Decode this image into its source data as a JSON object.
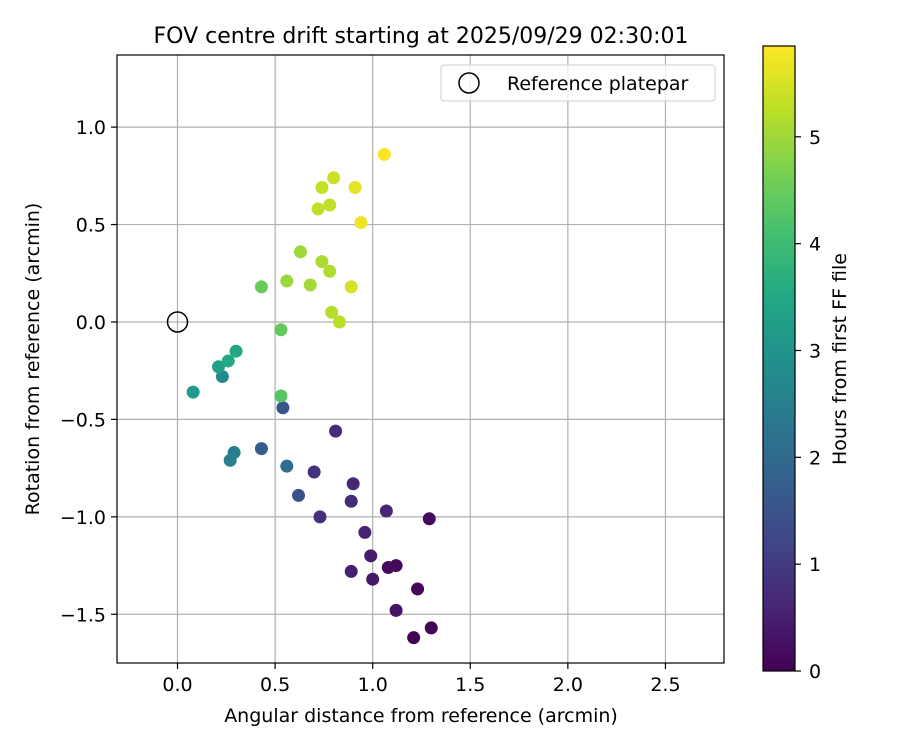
{
  "chart_data": {
    "type": "scatter",
    "title": "FOV centre drift starting at 2025/09/29 02:30:01",
    "xlabel": "Angular distance from reference (arcmin)",
    "ylabel": "Rotation from reference (arcmin)",
    "xlim": [
      -0.31,
      2.8
    ],
    "ylim": [
      -1.75,
      1.37
    ],
    "xticks": [
      0.0,
      0.5,
      1.0,
      1.5,
      2.0,
      2.5
    ],
    "xtick_labels": [
      "0.0",
      "0.5",
      "1.0",
      "1.5",
      "2.0",
      "2.5"
    ],
    "yticks": [
      1.0,
      0.5,
      0.0,
      -0.5,
      -1.0,
      -1.5
    ],
    "ytick_labels": [
      "1.0",
      "0.5",
      "0.0",
      "−0.5",
      "−1.0",
      "−1.5"
    ],
    "grid": true,
    "legend": {
      "position": "top-right",
      "entries": [
        {
          "label": "Reference platepar",
          "marker": "open-circle"
        }
      ]
    },
    "reference_point": {
      "x": 0.0,
      "y": 0.0
    },
    "colorbar": {
      "label": "Hours from first FF file",
      "colormap": "viridis",
      "range": [
        0,
        5.85
      ],
      "ticks": [
        0,
        1,
        2,
        3,
        4,
        5
      ],
      "tick_labels": [
        "0",
        "1",
        "2",
        "3",
        "4",
        "5"
      ]
    },
    "points": [
      {
        "x": 1.21,
        "y": -1.62,
        "hours": 0.02
      },
      {
        "x": 1.3,
        "y": -1.57,
        "hours": 0.05
      },
      {
        "x": 1.23,
        "y": -1.37,
        "hours": 0.08
      },
      {
        "x": 1.12,
        "y": -1.25,
        "hours": 0.12
      },
      {
        "x": 1.08,
        "y": -1.26,
        "hours": 0.15
      },
      {
        "x": 1.29,
        "y": -1.01,
        "hours": 0.18
      },
      {
        "x": 1.12,
        "y": -1.48,
        "hours": 0.3
      },
      {
        "x": 1.0,
        "y": -1.32,
        "hours": 0.4
      },
      {
        "x": 0.99,
        "y": -1.2,
        "hours": 0.45
      },
      {
        "x": 0.89,
        "y": -1.28,
        "hours": 0.5
      },
      {
        "x": 0.96,
        "y": -1.08,
        "hours": 0.55
      },
      {
        "x": 1.07,
        "y": -0.97,
        "hours": 0.6
      },
      {
        "x": 0.9,
        "y": -0.83,
        "hours": 0.65
      },
      {
        "x": 0.89,
        "y": -0.92,
        "hours": 0.7
      },
      {
        "x": 0.81,
        "y": -0.56,
        "hours": 0.75
      },
      {
        "x": 0.73,
        "y": -1.0,
        "hours": 0.8
      },
      {
        "x": 0.7,
        "y": -0.77,
        "hours": 0.85
      },
      {
        "x": 0.62,
        "y": -0.89,
        "hours": 1.45
      },
      {
        "x": 0.54,
        "y": -0.44,
        "hours": 1.55
      },
      {
        "x": 0.43,
        "y": -0.65,
        "hours": 1.7
      },
      {
        "x": 0.56,
        "y": -0.74,
        "hours": 2.1
      },
      {
        "x": 0.29,
        "y": -0.67,
        "hours": 2.45
      },
      {
        "x": 0.27,
        "y": -0.71,
        "hours": 2.5
      },
      {
        "x": 0.23,
        "y": -0.28,
        "hours": 2.75
      },
      {
        "x": 0.08,
        "y": -0.36,
        "hours": 3.15
      },
      {
        "x": 0.21,
        "y": -0.23,
        "hours": 3.3
      },
      {
        "x": 0.3,
        "y": -0.15,
        "hours": 3.45
      },
      {
        "x": 0.26,
        "y": -0.2,
        "hours": 3.55
      },
      {
        "x": 0.53,
        "y": -0.38,
        "hours": 4.3
      },
      {
        "x": 0.53,
        "y": -0.04,
        "hours": 4.45
      },
      {
        "x": 0.43,
        "y": 0.18,
        "hours": 4.5
      },
      {
        "x": 0.56,
        "y": 0.21,
        "hours": 4.95
      },
      {
        "x": 0.63,
        "y": 0.36,
        "hours": 5.0
      },
      {
        "x": 0.68,
        "y": 0.19,
        "hours": 5.05
      },
      {
        "x": 0.74,
        "y": 0.31,
        "hours": 5.1
      },
      {
        "x": 0.78,
        "y": 0.26,
        "hours": 5.15
      },
      {
        "x": 0.79,
        "y": 0.05,
        "hours": 5.2
      },
      {
        "x": 0.83,
        "y": 0.0,
        "hours": 5.25
      },
      {
        "x": 0.72,
        "y": 0.58,
        "hours": 5.3
      },
      {
        "x": 0.78,
        "y": 0.6,
        "hours": 5.32
      },
      {
        "x": 0.74,
        "y": 0.69,
        "hours": 5.35
      },
      {
        "x": 0.8,
        "y": 0.74,
        "hours": 5.4
      },
      {
        "x": 0.89,
        "y": 0.18,
        "hours": 5.5
      },
      {
        "x": 0.91,
        "y": 0.69,
        "hours": 5.6
      },
      {
        "x": 0.94,
        "y": 0.51,
        "hours": 5.7
      },
      {
        "x": 1.06,
        "y": 0.86,
        "hours": 5.8
      }
    ]
  }
}
